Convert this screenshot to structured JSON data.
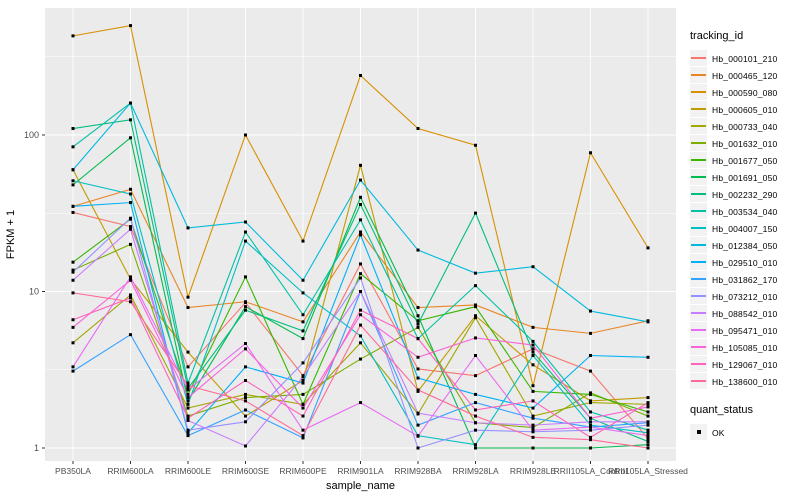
{
  "colors": {
    "panel_background": "#EBEBEB",
    "gridline": "#FFFFFF",
    "tick_label": "#4D4D4D",
    "axis_title": "#000000",
    "point": "#000000",
    "legend_key_background": "#F2F2F2"
  },
  "legend": {
    "tracking_title": "tracking_id",
    "quant_title": "quant_status",
    "quant_items": [
      {
        "label": "OK"
      }
    ]
  },
  "chart_data": {
    "type": "line",
    "title": "",
    "xlabel": "sample_name",
    "ylabel": "FPKM + 1",
    "y_scale": "log10",
    "y_ticks": [
      "1",
      "10",
      "100"
    ],
    "ylim_log": [
      0.92,
      650
    ],
    "grid": "major-and-minor-horizontal, major-vertical",
    "legend_position": "right",
    "point_shape": "filled-black-square",
    "categories": [
      "PB350LA",
      "RRIM600LA",
      "RRIM600LE",
      "RRIM600SE",
      "RRIM600PE",
      "RRIM901LA",
      "RRIM928BA",
      "RRIM928LA",
      "RRIM928LE",
      "RRII105LA_Control",
      "RRII105LA_Stressed"
    ],
    "series": [
      {
        "name": "Hb_000101_210",
        "color": "#F8766D",
        "values": [
          32,
          26,
          3.3,
          8.5,
          2.9,
          15,
          3.2,
          2.9,
          4.3,
          3.1,
          1.15
        ]
      },
      {
        "name": "Hb_000465_120",
        "color": "#E88526",
        "values": [
          35,
          45,
          7.9,
          8.6,
          6.4,
          24,
          7.9,
          8.2,
          5.9,
          5.4,
          6.5
        ]
      },
      {
        "name": "Hb_000590_080",
        "color": "#D89000",
        "values": [
          430,
          500,
          9.2,
          100,
          21,
          240,
          110,
          86,
          2.5,
          77,
          19
        ]
      },
      {
        "name": "Hb_000605_010",
        "color": "#C09B00",
        "values": [
          60,
          12,
          4.1,
          1.6,
          2.7,
          64,
          2.3,
          7.0,
          3.4,
          2.0,
          2.1
        ]
      },
      {
        "name": "Hb_000733_040",
        "color": "#A3A500",
        "values": [
          4.7,
          9.5,
          1.8,
          2.2,
          1.9,
          4.7,
          1.65,
          6.8,
          1.6,
          1.95,
          1.9
        ]
      },
      {
        "name": "Hb_001632_010",
        "color": "#7CAE00",
        "values": [
          13.7,
          20,
          1.6,
          2.1,
          2.2,
          3.7,
          5.9,
          1.45,
          1.35,
          2.25,
          1.6
        ]
      },
      {
        "name": "Hb_001677_050",
        "color": "#39B600",
        "values": [
          15.4,
          29,
          2.2,
          12.4,
          1.9,
          13,
          6.5,
          8.0,
          2.3,
          2.2,
          1.7
        ]
      },
      {
        "name": "Hb_001691_050",
        "color": "#00BB4E",
        "values": [
          48,
          96,
          2.0,
          8.0,
          5.0,
          40,
          7.0,
          1.0,
          1.0,
          1.0,
          1.05
        ]
      },
      {
        "name": "Hb_002232_290",
        "color": "#00BF7D",
        "values": [
          110,
          125,
          2.4,
          7.6,
          5.6,
          36,
          6.2,
          31.7,
          4.1,
          1.55,
          1.1
        ]
      },
      {
        "name": "Hb_003534_040",
        "color": "#00C1A3",
        "values": [
          84,
          160,
          2.6,
          24,
          7.1,
          28.7,
          5.0,
          10.9,
          4.8,
          1.7,
          1.3
        ]
      },
      {
        "name": "Hb_004007_150",
        "color": "#00BFC4",
        "values": [
          51,
          42,
          1.9,
          21,
          9.8,
          5.2,
          1.2,
          1.05,
          3.9,
          1.4,
          1.25
        ]
      },
      {
        "name": "Hb_012384_050",
        "color": "#00BADE",
        "values": [
          60,
          160,
          25.5,
          27.8,
          11.8,
          51.5,
          18.4,
          13.1,
          14.4,
          7.5,
          6.4
        ]
      },
      {
        "name": "Hb_029510_010",
        "color": "#00B0F6",
        "values": [
          35,
          37,
          1.25,
          3.3,
          2.6,
          23,
          2.8,
          2.2,
          1.8,
          3.9,
          3.8
        ]
      },
      {
        "name": "Hb_031862_170",
        "color": "#35A2FF",
        "values": [
          3.1,
          5.3,
          1.2,
          1.75,
          1.16,
          10,
          1.4,
          1.95,
          1.55,
          1.36,
          1.45
        ]
      },
      {
        "name": "Hb_073212_010",
        "color": "#9590FF",
        "values": [
          13.3,
          29.4,
          1.3,
          1.47,
          3.5,
          12.2,
          1.0,
          1.3,
          1.27,
          1.3,
          1.4
        ]
      },
      {
        "name": "Hb_088542_010",
        "color": "#C77CFF",
        "values": [
          11.8,
          25,
          1.5,
          1.03,
          2.85,
          10,
          1.67,
          1.45,
          1.4,
          1.47,
          1.47
        ]
      },
      {
        "name": "Hb_095471_010",
        "color": "#E76BF3",
        "values": [
          3.3,
          12.4,
          2.35,
          4.65,
          1.3,
          1.95,
          1.19,
          3.9,
          1.3,
          1.36,
          1.2
        ]
      },
      {
        "name": "Hb_105085_010",
        "color": "#FA62DB",
        "values": [
          5.9,
          11.8,
          2.1,
          4.3,
          1.8,
          7.1,
          3.8,
          5.05,
          4.55,
          1.55,
          1.83
        ]
      },
      {
        "name": "Hb_129067_010",
        "color": "#FF62BC",
        "values": [
          6.6,
          9.1,
          1.55,
          2.7,
          1.6,
          7.6,
          5.0,
          1.75,
          2.0,
          1.17,
          1.95
        ]
      },
      {
        "name": "Hb_138600_010",
        "color": "#FF6A98",
        "values": [
          9.8,
          8.6,
          2.5,
          2.0,
          1.2,
          6.1,
          2.35,
          1.6,
          1.17,
          1.13,
          1.0
        ]
      }
    ]
  }
}
